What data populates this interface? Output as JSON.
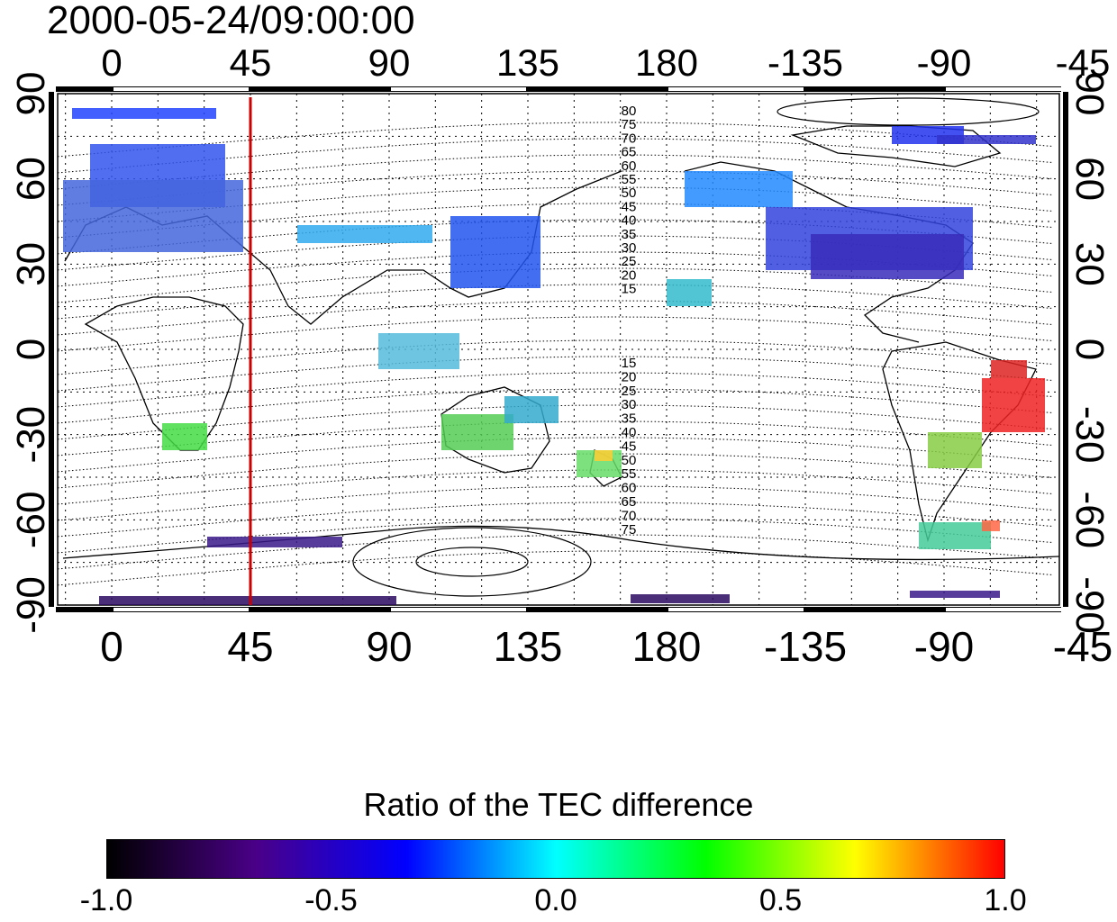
{
  "title": "2000-05-24/09:00:00",
  "map": {
    "lon_ticks_top": [
      "0",
      "45",
      "90",
      "135",
      "180",
      "-135",
      "-90",
      "-45"
    ],
    "lon_ticks_bottom": [
      "0",
      "45",
      "90",
      "135",
      "180",
      "-135",
      "-90",
      "-45"
    ],
    "lat_ticks_left": [
      "90",
      "60",
      "30",
      "0",
      "-30",
      "-60",
      "-90"
    ],
    "lat_ticks_right": [
      "90",
      "60",
      "30",
      "0",
      "-30",
      "-60",
      "-90"
    ],
    "contour_labels_north": [
      "80",
      "75",
      "70",
      "65",
      "60",
      "55",
      "50",
      "45",
      "40",
      "35",
      "30",
      "25",
      "20",
      "15"
    ],
    "contour_labels_south": [
      "15",
      "20",
      "25",
      "30",
      "35",
      "40",
      "45",
      "50",
      "55",
      "60",
      "65",
      "70",
      "75"
    ],
    "marker_meridian": 45,
    "marker_color": "#cc0000",
    "grid": true,
    "coastlines": true
  },
  "colorbar": {
    "title": "Ratio of the TEC difference",
    "min": -1.0,
    "max": 1.0,
    "tick_labels": [
      "-1.0",
      "-0.5",
      "0.0",
      "0.5",
      "1.0"
    ],
    "colors": [
      "#000000",
      "#4a0088",
      "#0000ff",
      "#00ffff",
      "#00ff00",
      "#ffff00",
      "#ff0000"
    ]
  }
}
